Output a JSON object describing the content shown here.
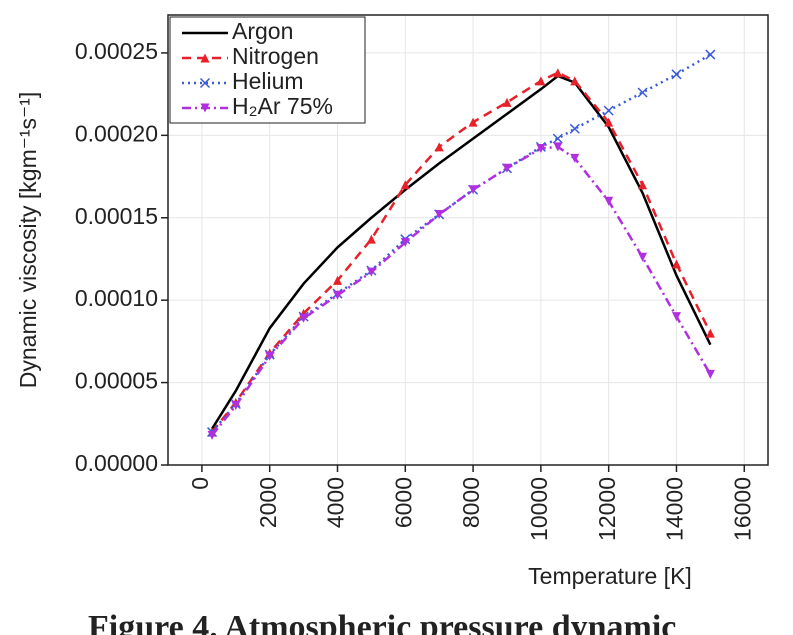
{
  "chart_data": {
    "type": "line",
    "x_label": "Temperature [K]",
    "y_label": "Dynamic viscosity [kgm⁻¹s⁻¹]",
    "caption": "Figure 4. Atmospheric pressure dynamic",
    "x": [
      300,
      1000,
      2000,
      3000,
      4000,
      5000,
      6000,
      7000,
      8000,
      9000,
      10000,
      10500,
      11000,
      12000,
      13000,
      14000,
      15000
    ],
    "series": [
      {
        "name": "Argon",
        "color": "#000000",
        "dash": "solid",
        "marker": "none",
        "values": [
          2.2e-05,
          4.5e-05,
          8.3e-05,
          0.00011,
          0.000132,
          0.00015,
          0.000167,
          0.000183,
          0.000198,
          0.000213,
          0.000228,
          0.000236,
          0.000232,
          0.000205,
          0.000165,
          0.000115,
          7.3e-05
        ]
      },
      {
        "name": "Nitrogen",
        "color": "#e8202a",
        "dash": "dashed",
        "marker": "triangle",
        "values": [
          2e-05,
          3.8e-05,
          6.8e-05,
          9.2e-05,
          0.000112,
          0.000137,
          0.00017,
          0.000193,
          0.000208,
          0.00022,
          0.000233,
          0.000238,
          0.000233,
          0.000208,
          0.00017,
          0.000122,
          8e-05
        ]
      },
      {
        "name": "Helium",
        "color": "#3a5bd9",
        "dash": "dotted",
        "marker": "x",
        "values": [
          2e-05,
          3.7e-05,
          6.7e-05,
          9e-05,
          0.000104,
          0.000118,
          0.000137,
          0.000152,
          0.000167,
          0.00018,
          0.000193,
          0.000198,
          0.000204,
          0.000215,
          0.000226,
          0.000237,
          0.000249
        ]
      },
      {
        "name": "H₂Ar 75%",
        "color": "#b030e0",
        "dash": "dashdot",
        "marker": "triangle-down",
        "values": [
          1.8e-05,
          3.6e-05,
          6.6e-05,
          8.9e-05,
          0.000103,
          0.000117,
          0.000135,
          0.000152,
          0.000167,
          0.00018,
          0.000192,
          0.000193,
          0.000186,
          0.00016,
          0.000126,
          9e-05,
          5.5e-05
        ]
      }
    ],
    "xlim": [
      -1000,
      16700
    ],
    "xticks": [
      0,
      2000,
      4000,
      6000,
      8000,
      10000,
      12000,
      14000,
      16000
    ],
    "ylim": [
      0,
      0.000273
    ],
    "yticks": [
      {
        "value": 0,
        "label": "0.00000"
      },
      {
        "value": 5e-05,
        "label": "0.00005"
      },
      {
        "value": 0.0001,
        "label": "0.00010"
      },
      {
        "value": 0.00015,
        "label": "0.00015"
      },
      {
        "value": 0.0002,
        "label": "0.00020"
      },
      {
        "value": 0.00025,
        "label": "0.00025"
      }
    ],
    "grid": true,
    "legend": "upper left"
  }
}
